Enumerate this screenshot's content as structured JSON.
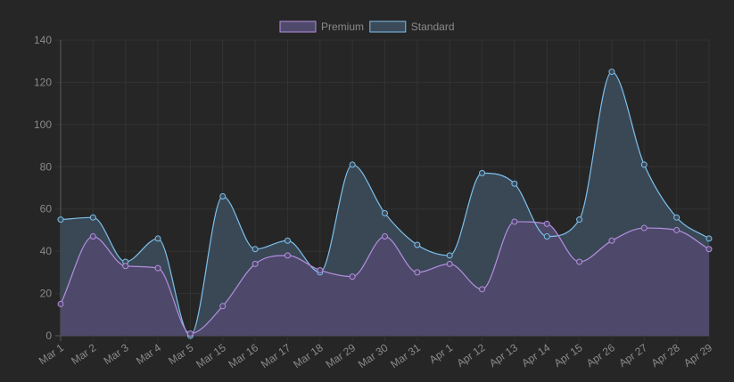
{
  "chart_data": {
    "type": "area",
    "categories": [
      "Mar 1",
      "Mar 2",
      "Mar 3",
      "Mar 4",
      "Mar 5",
      "Mar 15",
      "Mar 16",
      "Mar 17",
      "Mar 18",
      "Mar 29",
      "Mar 30",
      "Mar 31",
      "Apr 1",
      "Apr 12",
      "Apr 13",
      "Apr 14",
      "Apr 15",
      "Apr 26",
      "Apr 27",
      "Apr 28",
      "Apr 29"
    ],
    "series": [
      {
        "name": "Premium",
        "color": "#b48ee0",
        "fill": "#4f4a6c",
        "values": [
          15,
          47,
          33,
          32,
          1,
          14,
          34,
          38,
          31,
          28,
          47,
          30,
          34,
          22,
          54,
          53,
          35,
          45,
          51,
          50,
          41
        ]
      },
      {
        "name": "Standard",
        "color": "#7cc0ec",
        "fill": "#3b4a58",
        "values": [
          55,
          56,
          35,
          46,
          0,
          66,
          41,
          45,
          30,
          81,
          58,
          43,
          38,
          77,
          72,
          47,
          55,
          125,
          81,
          56,
          46
        ]
      }
    ],
    "ylim": [
      0,
      140
    ],
    "yticks": [
      "0",
      "20",
      "40",
      "60",
      "80",
      "100",
      "120",
      "140"
    ],
    "grid": true,
    "legend_position": "top-center",
    "title": "",
    "xlabel": "",
    "ylabel": ""
  }
}
